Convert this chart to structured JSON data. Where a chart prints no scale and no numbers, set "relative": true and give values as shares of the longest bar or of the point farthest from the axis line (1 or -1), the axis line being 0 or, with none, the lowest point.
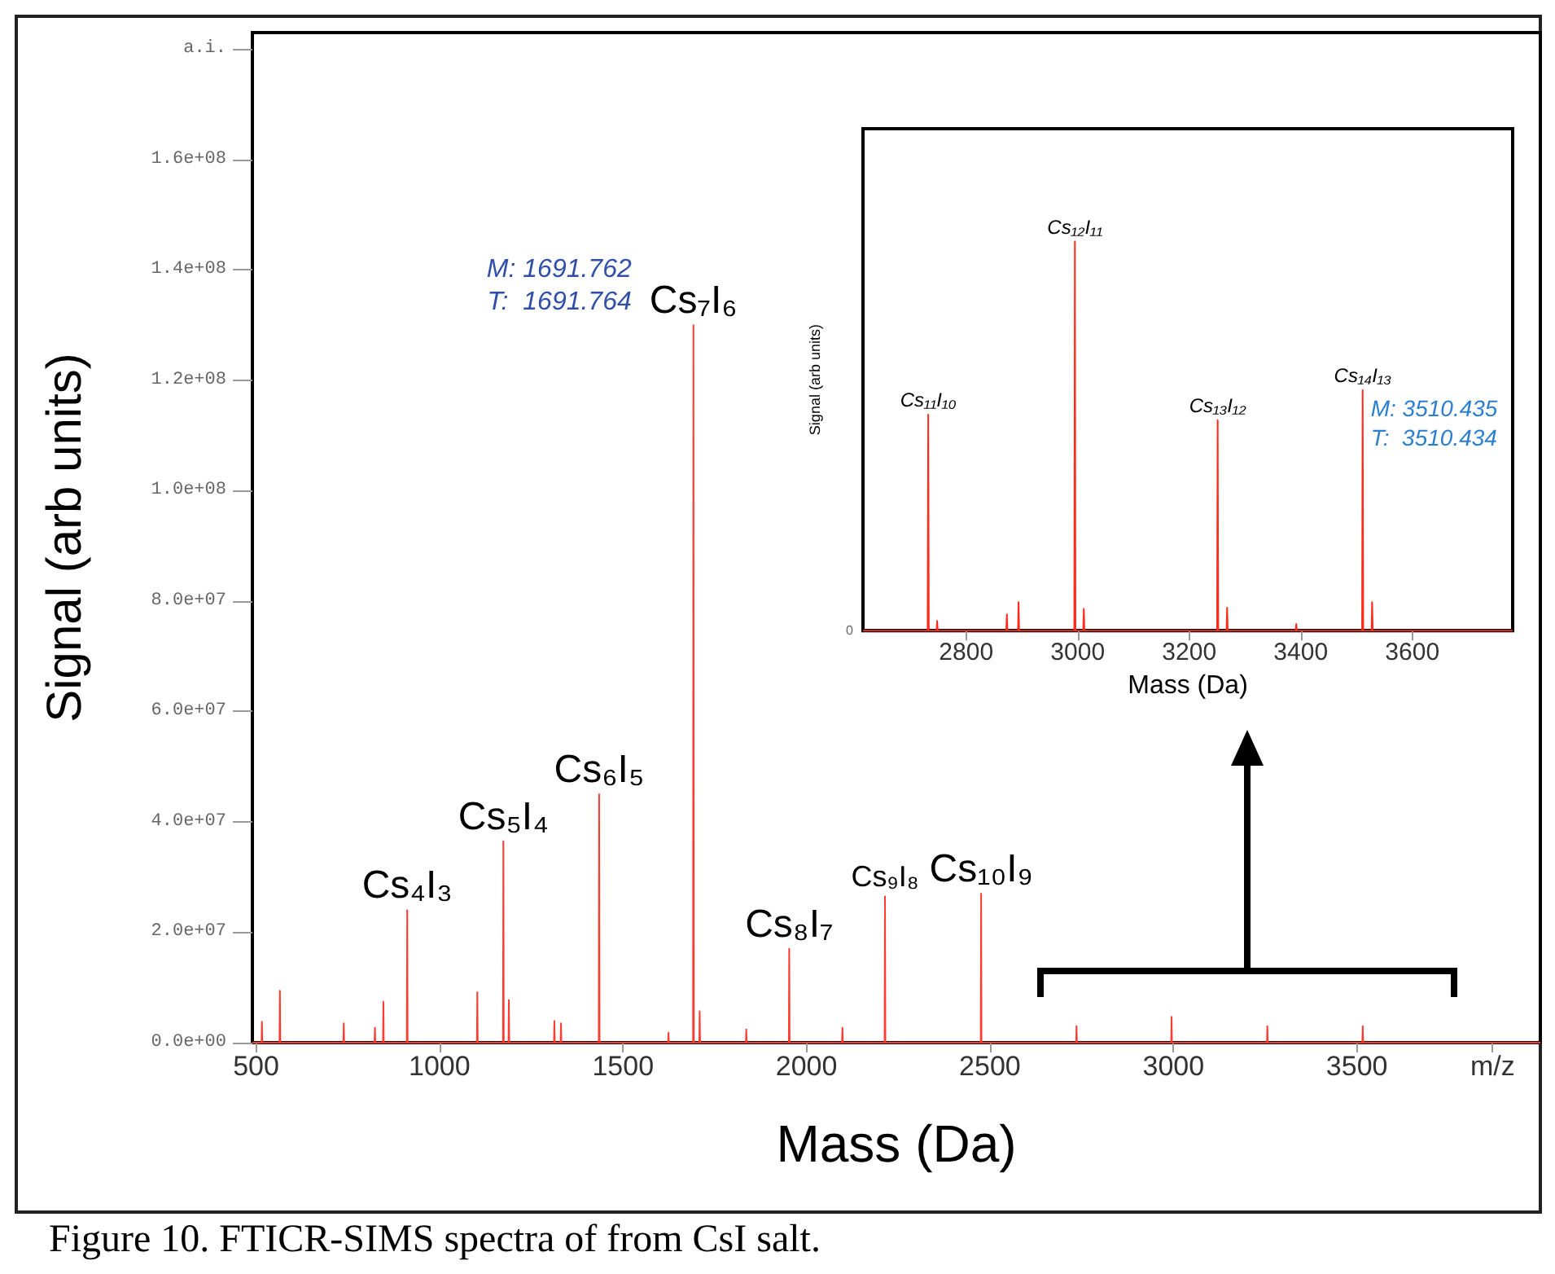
{
  "chart_data": [
    {
      "type": "line",
      "xlabel": "Mass (Da)",
      "ylabel": "Signal (arb units)",
      "color": "#ff3b30",
      "x": [
        490,
        515,
        516,
        517,
        564,
        565,
        566,
        738,
        739,
        740,
        823,
        824,
        825,
        846,
        847,
        848,
        911,
        912,
        913,
        1102,
        1103,
        1104,
        1173,
        1174,
        1175,
        1188,
        1189,
        1190,
        1312,
        1313,
        1314,
        1330,
        1331,
        1332,
        1434,
        1435,
        1436,
        1623,
        1624,
        1625,
        1691,
        1692,
        1693,
        1708,
        1709,
        1710,
        1835,
        1836,
        1837,
        1952,
        1953,
        1954,
        2097,
        2098,
        2099,
        2213,
        2214,
        2215,
        2475,
        2476,
        2477,
        2735,
        2736,
        2737,
        2994,
        2995,
        2996,
        3255,
        3256,
        3257,
        3515,
        3516,
        3517,
        4000
      ],
      "values": [
        0,
        0,
        3800000,
        0,
        0,
        9400000,
        0,
        0,
        3500000,
        0,
        0,
        2700000,
        0,
        0,
        7400000,
        0,
        0,
        24000000,
        0,
        0,
        9100000,
        0,
        0,
        36500000,
        0,
        0,
        7700000,
        0,
        0,
        3900000,
        0,
        0,
        3500000,
        0,
        0,
        45000000,
        0,
        0,
        1800000,
        0,
        0,
        130000000,
        0,
        0,
        5700000,
        0,
        0,
        2400000,
        0,
        0,
        17000000,
        0,
        0,
        2700000,
        0,
        0,
        26500000,
        0,
        0,
        27000000,
        0,
        0,
        3000000,
        0,
        0,
        4700000,
        0,
        0,
        3000000,
        0,
        0,
        3000000,
        0,
        0
      ],
      "xlim": [
        490,
        4000
      ],
      "xticks": [
        500,
        1000,
        1500,
        2000,
        2500,
        3000,
        3500,
        {
          "value": 3870,
          "label": "m/z"
        }
      ],
      "ylim": [
        0,
        183000000
      ],
      "yticks": [
        {
          "value": 0,
          "label": "0.0e+00"
        },
        {
          "value": 20000000,
          "label": "2.0e+07"
        },
        {
          "value": 40000000,
          "label": "4.0e+07"
        },
        {
          "value": 60000000,
          "label": "6.0e+07"
        },
        {
          "value": 80000000,
          "label": "8.0e+07"
        },
        {
          "value": 100000000,
          "label": "1.0e+08"
        },
        {
          "value": 120000000,
          "label": "1.2e+08"
        },
        {
          "value": 140000000,
          "label": "1.4e+08"
        },
        {
          "value": 160000000,
          "label": "1.6e+08"
        },
        {
          "value": 180000000,
          "label": "a.i."
        }
      ],
      "annotations": [
        {
          "text": "Cs₄I₃",
          "x": 912,
          "y": 24000000
        },
        {
          "text": "Cs₅I₄",
          "x": 1174,
          "y": 36500000
        },
        {
          "text": "Cs₆I₅",
          "x": 1435,
          "y": 45000000
        },
        {
          "text": "Cs₇I₆",
          "x": 1692,
          "y": 130000000
        },
        {
          "text": "M: 1691.762\nT:  1691.764",
          "x": 1692,
          "y": 130000000
        },
        {
          "text": "Cs₈I₇",
          "x": 1953,
          "y": 17000000
        },
        {
          "text": "Cs₉I₈",
          "x": 2214,
          "y": 26500000
        },
        {
          "text": "Cs₁₀I₉",
          "x": 2476,
          "y": 27000000
        },
        "Figure 10.  FTICR-SIMS spectra of from CsI salt."
      ]
    },
    {
      "type": "line",
      "relative": true,
      "xlabel": "Mass (Da)",
      "ylabel": "Signal (arb units)",
      "color": "#ff2a1a",
      "x": [
        2615,
        2731,
        2732,
        2733,
        2747,
        2748,
        2749,
        2872,
        2873,
        2874,
        2893,
        2894,
        2895,
        2994,
        2995,
        2996,
        3010,
        3011,
        3012,
        3250,
        3251,
        3252,
        3267,
        3268,
        3269,
        3391,
        3392,
        3393,
        3510,
        3511,
        3512,
        3527,
        3528,
        3529,
        3780
      ],
      "values": [
        0,
        0,
        0.555,
        0,
        0,
        0.025,
        0,
        0,
        0.042,
        0,
        0,
        0.073,
        0,
        0,
        1,
        0,
        0,
        0.056,
        0,
        0,
        0.541,
        0,
        0,
        0.059,
        0,
        0,
        0.017,
        0,
        0,
        0.618,
        0,
        0,
        0.073,
        0,
        0
      ],
      "xlim": [
        2615,
        3780
      ],
      "xticks": [
        2800,
        3000,
        3200,
        3400,
        3600
      ],
      "annotations": [
        {
          "text": "Cs₁₁I₁₀",
          "x": 2732,
          "y": 0.555
        },
        {
          "text": "Cs₁₂I₁₁",
          "x": 2995,
          "y": 1
        },
        {
          "text": "Cs₁₃I₁₂",
          "x": 3251,
          "y": 0.541
        },
        {
          "text": "Cs₁₄I₁₃",
          "x": 3511,
          "y": 0.618
        },
        {
          "text": "M: 3510.435\nT:  3510.434",
          "x": 3511,
          "y": 0.618
        },
        "0"
      ]
    }
  ]
}
